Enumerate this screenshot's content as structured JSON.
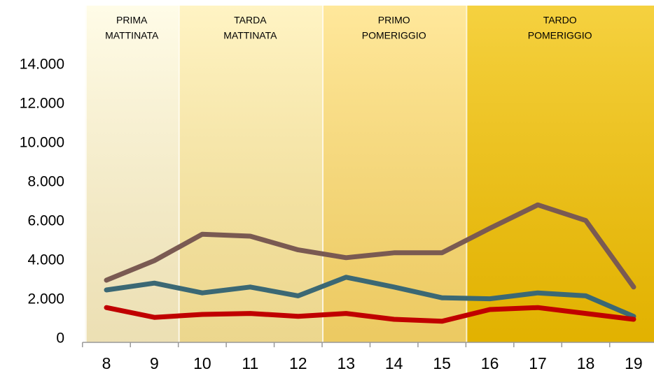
{
  "chart_data": {
    "type": "line",
    "x": [
      8,
      9,
      10,
      11,
      12,
      13,
      14,
      15,
      16,
      17,
      18,
      19
    ],
    "xlim": [
      7.5,
      19.5
    ],
    "xticks": [
      8,
      9,
      10,
      11,
      12,
      13,
      14,
      15,
      16,
      17,
      18,
      19
    ],
    "ylim": [
      0,
      14000
    ],
    "yticks": [
      0,
      {
        "value": 2000,
        "label": "2.000"
      },
      {
        "value": 4000,
        "label": "4.000"
      },
      {
        "value": 6000,
        "label": "6.000"
      },
      {
        "value": 8000,
        "label": "8.000"
      },
      {
        "value": 10000,
        "label": "10.000"
      },
      {
        "value": 12000,
        "label": "12.000"
      },
      {
        "value": 14000,
        "label": "14.000"
      }
    ],
    "bands": [
      {
        "lines": [
          "PRIMA",
          "MATTINATA"
        ],
        "span": [
          8,
          9
        ],
        "color": "#fffbe0"
      },
      {
        "lines": [
          "TARDA",
          "MATTINATA"
        ],
        "span": [
          10,
          12
        ],
        "color": "#fff0b0"
      },
      {
        "lines": [
          "PRIMO",
          "POMERIGGIO"
        ],
        "span": [
          13,
          15
        ],
        "color": "#ffe07a"
      },
      {
        "lines": [
          "TARDO",
          "POMERIGGIO"
        ],
        "span": [
          16,
          19
        ],
        "color": "#f2c200"
      }
    ],
    "series": [
      {
        "color": "#7a5a52",
        "values": [
          3000,
          4000,
          5350,
          5250,
          4550,
          4150,
          4400,
          4400,
          5650,
          6850,
          6050,
          2650
        ]
      },
      {
        "color": "#3b6874",
        "values": [
          2500,
          2850,
          2350,
          2650,
          2200,
          3150,
          2650,
          2100,
          2050,
          2350,
          2200,
          1150
        ]
      },
      {
        "color": "#c00000",
        "values": [
          1600,
          1100,
          1250,
          1300,
          1150,
          1300,
          1000,
          900,
          1500,
          1600,
          1300,
          1000
        ]
      }
    ]
  }
}
